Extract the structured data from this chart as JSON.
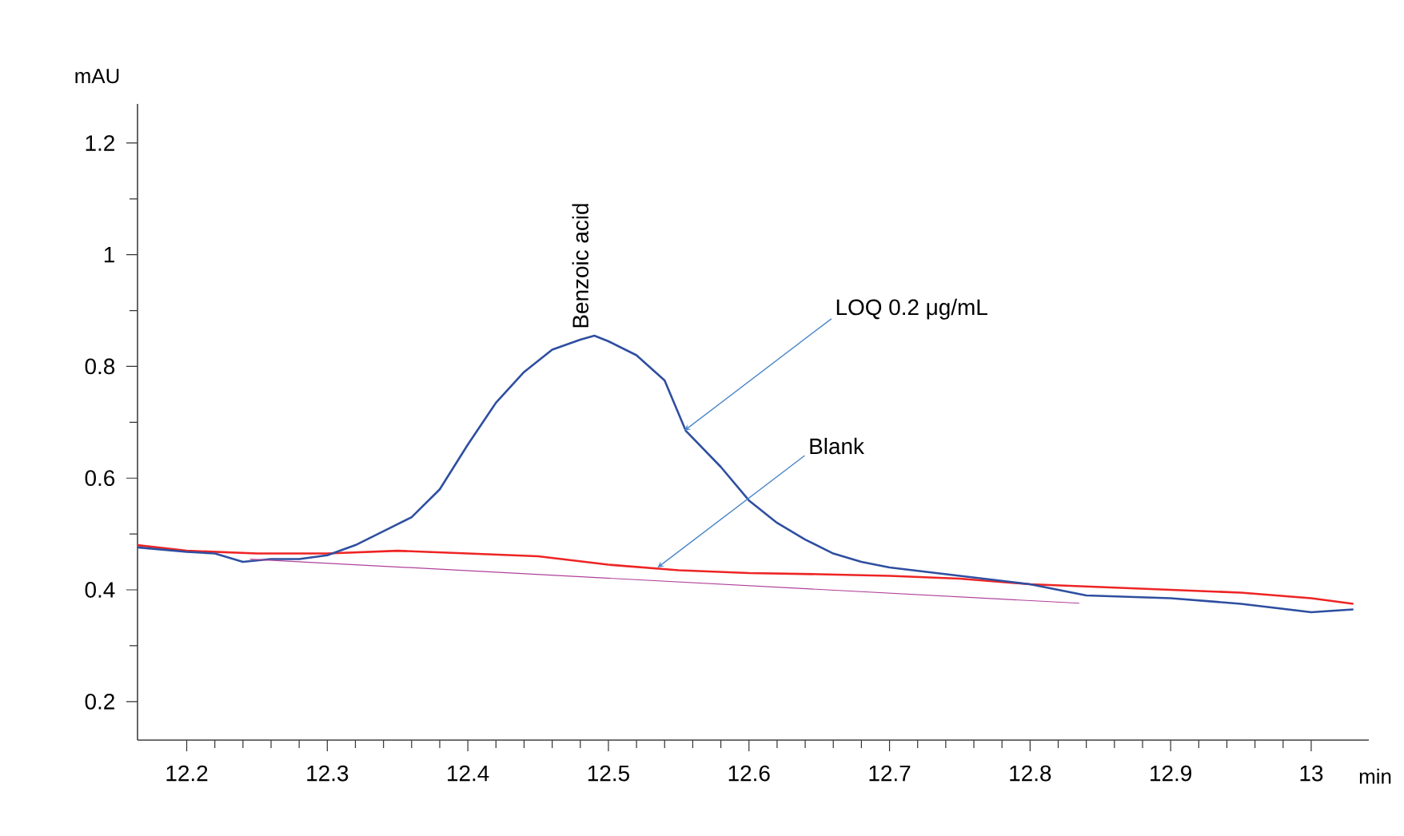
{
  "chart_data": {
    "type": "line",
    "xlabel": "min",
    "ylabel": "mAU",
    "xlim": [
      12.165,
      13.041
    ],
    "ylim": [
      0.131,
      1.27
    ],
    "xticks": [
      12.2,
      12.3,
      12.4,
      12.5,
      12.6,
      12.7,
      12.8,
      12.9,
      13
    ],
    "yticks": [
      0.2,
      0.4,
      0.6,
      0.8,
      1,
      1.2
    ],
    "marker": "none",
    "line_style": "solid",
    "series": [
      {
        "color": "#ee2424",
        "x": [
          12.165,
          12.2,
          12.25,
          12.3,
          12.35,
          12.4,
          12.45,
          12.5,
          12.55,
          12.6,
          12.65,
          12.7,
          12.75,
          12.8,
          12.85,
          12.9,
          12.95,
          13.0,
          13.03
        ],
        "values": [
          0.48,
          0.47,
          0.465,
          0.465,
          0.47,
          0.465,
          0.46,
          0.445,
          0.435,
          0.43,
          0.428,
          0.425,
          0.42,
          0.41,
          0.405,
          0.4,
          0.395,
          0.385,
          0.375
        ]
      },
      {
        "color": "#2e4ea0",
        "x": [
          12.165,
          12.2,
          12.22,
          12.24,
          12.26,
          12.28,
          12.3,
          12.32,
          12.34,
          12.36,
          12.38,
          12.4,
          12.42,
          12.44,
          12.46,
          12.48,
          12.49,
          12.5,
          12.52,
          12.54,
          12.555,
          12.58,
          12.6,
          12.62,
          12.64,
          12.66,
          12.68,
          12.7,
          12.75,
          12.8,
          12.84,
          12.9,
          12.95,
          13.0,
          13.03
        ],
        "values": [
          0.476,
          0.468,
          0.465,
          0.45,
          0.455,
          0.455,
          0.462,
          0.48,
          0.505,
          0.53,
          0.58,
          0.66,
          0.735,
          0.79,
          0.83,
          0.848,
          0.855,
          0.845,
          0.82,
          0.775,
          0.685,
          0.62,
          0.56,
          0.52,
          0.49,
          0.465,
          0.45,
          0.44,
          0.425,
          0.41,
          0.39,
          0.385,
          0.375,
          0.36,
          0.365
        ]
      },
      {
        "color": "#b0409a",
        "x": [
          12.245,
          12.835
        ],
        "values": [
          0.455,
          0.376
        ]
      }
    ],
    "annotations": [
      {
        "text": "Benzoic acid",
        "x": 12.48,
        "y": 0.855
      },
      {
        "text": "LOQ 0.2 μg/mL",
        "x": 12.554,
        "y": 0.685
      },
      {
        "text": "Blank",
        "x": 12.535,
        "y": 0.44
      }
    ]
  }
}
